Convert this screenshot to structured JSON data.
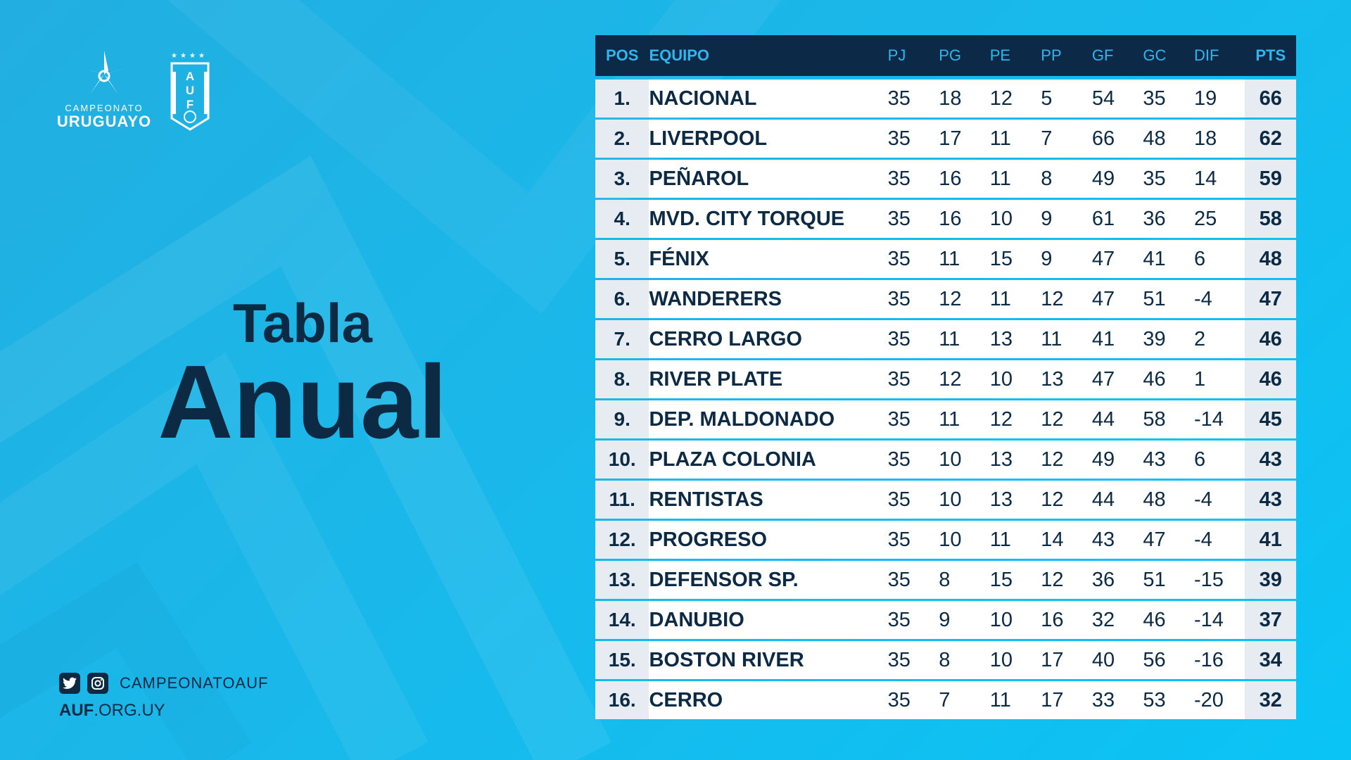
{
  "logo": {
    "small_text": "CAMPEONATO",
    "big_text": "URUGUAYO",
    "auf_letters": "AUF"
  },
  "title": {
    "line1": "Tabla",
    "line2": "Anual"
  },
  "social": {
    "handle": "CAMPEONATOAUF",
    "website_bold": "AUF",
    "website_rest": ".ORG.UY",
    "icons": [
      "twitter-icon",
      "instagram-icon"
    ]
  },
  "colors": {
    "navy": "#0c2a47",
    "accent": "#2fb6ee",
    "row_bg": "#ffffff",
    "cell_alt": "#e6ecf2"
  },
  "table": {
    "headers": [
      "POS",
      "EQUIPO",
      "PJ",
      "PG",
      "PE",
      "PP",
      "GF",
      "GC",
      "DIF",
      "PTS"
    ],
    "rows": [
      {
        "pos": "1.",
        "team": "NACIONAL",
        "pj": "35",
        "pg": "18",
        "pe": "12",
        "pp": "5",
        "gf": "54",
        "gc": "35",
        "dif": "19",
        "pts": "66"
      },
      {
        "pos": "2.",
        "team": "LIVERPOOL",
        "pj": "35",
        "pg": "17",
        "pe": "11",
        "pp": "7",
        "gf": "66",
        "gc": "48",
        "dif": "18",
        "pts": "62"
      },
      {
        "pos": "3.",
        "team": "PEÑAROL",
        "pj": "35",
        "pg": "16",
        "pe": "11",
        "pp": "8",
        "gf": "49",
        "gc": "35",
        "dif": "14",
        "pts": "59"
      },
      {
        "pos": "4.",
        "team": "MVD. CITY TORQUE",
        "pj": "35",
        "pg": "16",
        "pe": "10",
        "pp": "9",
        "gf": "61",
        "gc": "36",
        "dif": "25",
        "pts": "58"
      },
      {
        "pos": "5.",
        "team": "FÉNIX",
        "pj": "35",
        "pg": "11",
        "pe": "15",
        "pp": "9",
        "gf": "47",
        "gc": "41",
        "dif": "6",
        "pts": "48"
      },
      {
        "pos": "6.",
        "team": "WANDERERS",
        "pj": "35",
        "pg": "12",
        "pe": "11",
        "pp": "12",
        "gf": "47",
        "gc": "51",
        "dif": "-4",
        "pts": "47"
      },
      {
        "pos": "7.",
        "team": "CERRO LARGO",
        "pj": "35",
        "pg": "11",
        "pe": "13",
        "pp": "11",
        "gf": "41",
        "gc": "39",
        "dif": "2",
        "pts": "46"
      },
      {
        "pos": "8.",
        "team": "RIVER PLATE",
        "pj": "35",
        "pg": "12",
        "pe": "10",
        "pp": "13",
        "gf": "47",
        "gc": "46",
        "dif": "1",
        "pts": "46"
      },
      {
        "pos": "9.",
        "team": "DEP. MALDONADO",
        "pj": "35",
        "pg": "11",
        "pe": "12",
        "pp": "12",
        "gf": "44",
        "gc": "58",
        "dif": "-14",
        "pts": "45"
      },
      {
        "pos": "10.",
        "team": "PLAZA COLONIA",
        "pj": "35",
        "pg": "10",
        "pe": "13",
        "pp": "12",
        "gf": "49",
        "gc": "43",
        "dif": "6",
        "pts": "43"
      },
      {
        "pos": "11.",
        "team": "RENTISTAS",
        "pj": "35",
        "pg": "10",
        "pe": "13",
        "pp": "12",
        "gf": "44",
        "gc": "48",
        "dif": "-4",
        "pts": "43"
      },
      {
        "pos": "12.",
        "team": "PROGRESO",
        "pj": "35",
        "pg": "10",
        "pe": "11",
        "pp": "14",
        "gf": "43",
        "gc": "47",
        "dif": "-4",
        "pts": "41"
      },
      {
        "pos": "13.",
        "team": "DEFENSOR SP.",
        "pj": "35",
        "pg": "8",
        "pe": "15",
        "pp": "12",
        "gf": "36",
        "gc": "51",
        "dif": "-15",
        "pts": "39"
      },
      {
        "pos": "14.",
        "team": "DANUBIO",
        "pj": "35",
        "pg": "9",
        "pe": "10",
        "pp": "16",
        "gf": "32",
        "gc": "46",
        "dif": "-14",
        "pts": "37"
      },
      {
        "pos": "15.",
        "team": "BOSTON RIVER",
        "pj": "35",
        "pg": "8",
        "pe": "10",
        "pp": "17",
        "gf": "40",
        "gc": "56",
        "dif": "-16",
        "pts": "34"
      },
      {
        "pos": "16.",
        "team": "CERRO",
        "pj": "35",
        "pg": "7",
        "pe": "11",
        "pp": "17",
        "gf": "33",
        "gc": "53",
        "dif": "-20",
        "pts": "32"
      }
    ]
  }
}
